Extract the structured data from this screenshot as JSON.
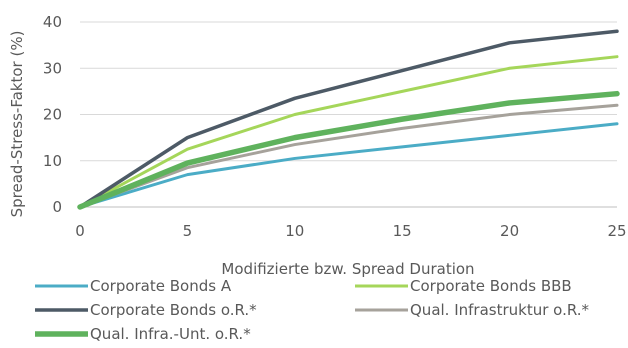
{
  "chart_data": {
    "type": "line",
    "title": "",
    "xlabel": "Modifizierte bzw. Spread Duration",
    "ylabel": "Spread-Stress-Faktor (%)",
    "xlim": [
      0,
      25
    ],
    "ylim": [
      0,
      40
    ],
    "xticks": [
      0,
      5,
      10,
      15,
      20,
      25
    ],
    "yticks": [
      0,
      10,
      20,
      30,
      40
    ],
    "grid": true,
    "legend_placement": "bottom",
    "x": [
      0,
      5,
      10,
      15,
      20,
      25
    ],
    "series": [
      {
        "name": "Corporate Bonds A",
        "color": "#4bacc6",
        "values": [
          0,
          7,
          10.5,
          13,
          15.5,
          18
        ]
      },
      {
        "name": "Corporate Bonds BBB",
        "color": "#a5d65a",
        "values": [
          0,
          12.5,
          20,
          25,
          30,
          32.5
        ]
      },
      {
        "name": "Corporate Bonds o.R.*",
        "color": "#4d5a66",
        "values": [
          0,
          15,
          23.5,
          29.5,
          35.5,
          38
        ]
      },
      {
        "name": "Qual. Infrastruktur o.R.*",
        "color": "#a6a29b",
        "values": [
          0,
          8.5,
          13.5,
          17,
          20,
          22
        ]
      },
      {
        "name": "Qual. Infra.-Unt. o.R.*",
        "color": "#5fb25d",
        "values": [
          0,
          9.5,
          15,
          19,
          22.5,
          24.5
        ]
      }
    ]
  }
}
